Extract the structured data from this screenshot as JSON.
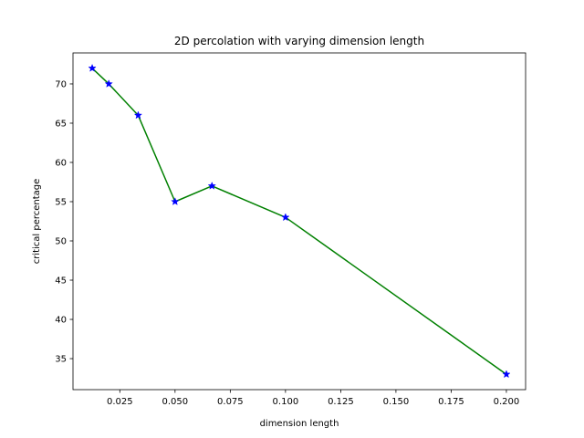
{
  "chart_data": {
    "type": "line",
    "title": "2D percolation with varying dimension length",
    "xlabel": "dimension length",
    "ylabel": "critical percentage",
    "xlim": [
      0.0038,
      0.2087
    ],
    "ylim": [
      31.05,
      73.95
    ],
    "xticks": [
      0.025,
      0.05,
      0.075,
      0.1,
      0.125,
      0.15,
      0.175,
      0.2
    ],
    "xtick_labels": [
      "0.025",
      "0.050",
      "0.075",
      "0.100",
      "0.125",
      "0.150",
      "0.175",
      "0.200"
    ],
    "yticks": [
      35,
      40,
      45,
      50,
      55,
      60,
      65,
      70
    ],
    "ytick_labels": [
      "35",
      "40",
      "45",
      "50",
      "55",
      "60",
      "65",
      "70"
    ],
    "grid": false,
    "legend": "none",
    "series": [
      {
        "x": [
          0.0125,
          0.02,
          0.0333,
          0.05,
          0.0667,
          0.1,
          0.2
        ],
        "y": [
          72,
          70,
          66,
          55,
          57,
          53,
          33
        ],
        "line_color": "#008000",
        "marker": "star",
        "marker_color": "#0000ff"
      }
    ]
  }
}
